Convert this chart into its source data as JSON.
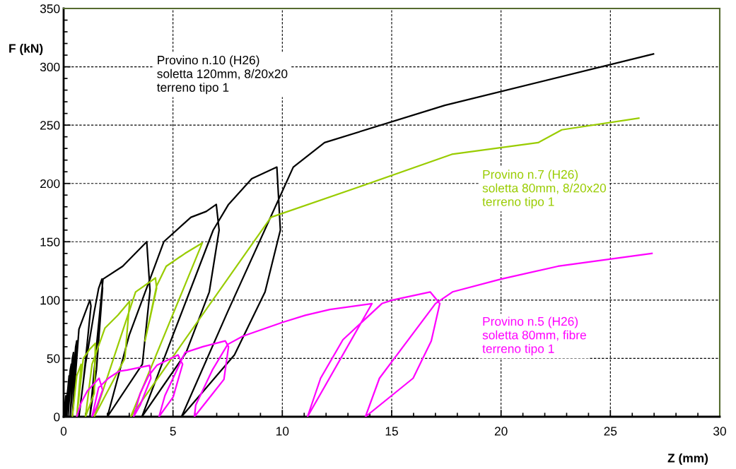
{
  "chart_data": {
    "type": "line",
    "xlabel": "Z (mm)",
    "ylabel": "F (kN)",
    "xlim": [
      0,
      30
    ],
    "ylim": [
      0,
      350
    ],
    "xticks": [
      0,
      {
        "value": 1,
        "label": null
      },
      {
        "value": 2,
        "label": null
      },
      {
        "value": 3,
        "label": null
      },
      {
        "value": 4,
        "label": null
      },
      5,
      {
        "value": 6,
        "label": null
      },
      {
        "value": 7,
        "label": null
      },
      {
        "value": 8,
        "label": null
      },
      {
        "value": 9,
        "label": null
      },
      10,
      {
        "value": 11,
        "label": null
      },
      {
        "value": 12,
        "label": null
      },
      {
        "value": 13,
        "label": null
      },
      {
        "value": 14,
        "label": null
      },
      15,
      {
        "value": 16,
        "label": null
      },
      {
        "value": 17,
        "label": null
      },
      {
        "value": 18,
        "label": null
      },
      {
        "value": 19,
        "label": null
      },
      20,
      {
        "value": 21,
        "label": null
      },
      {
        "value": 22,
        "label": null
      },
      {
        "value": 23,
        "label": null
      },
      {
        "value": 24,
        "label": null
      },
      25,
      {
        "value": 26,
        "label": null
      },
      {
        "value": 27,
        "label": null
      },
      {
        "value": 28,
        "label": null
      },
      {
        "value": 29,
        "label": null
      },
      30
    ],
    "yticks": [
      0,
      {
        "value": 10,
        "label": null
      },
      {
        "value": 20,
        "label": null
      },
      {
        "value": 30,
        "label": null
      },
      {
        "value": 40,
        "label": null
      },
      50,
      {
        "value": 60,
        "label": null
      },
      {
        "value": 70,
        "label": null
      },
      {
        "value": 80,
        "label": null
      },
      {
        "value": 90,
        "label": null
      },
      100,
      {
        "value": 110,
        "label": null
      },
      {
        "value": 120,
        "label": null
      },
      {
        "value": 130,
        "label": null
      },
      {
        "value": 140,
        "label": null
      },
      150,
      {
        "value": 160,
        "label": null
      },
      {
        "value": 170,
        "label": null
      },
      {
        "value": 180,
        "label": null
      },
      {
        "value": 190,
        "label": null
      },
      200,
      {
        "value": 210,
        "label": null
      },
      {
        "value": 220,
        "label": null
      },
      {
        "value": 230,
        "label": null
      },
      {
        "value": 240,
        "label": null
      },
      250,
      {
        "value": 260,
        "label": null
      },
      {
        "value": 270,
        "label": null
      },
      {
        "value": 280,
        "label": null
      },
      {
        "value": 290,
        "label": null
      },
      300,
      {
        "value": 310,
        "label": null
      },
      {
        "value": 320,
        "label": null
      },
      {
        "value": 330,
        "label": null
      },
      {
        "value": 340,
        "label": null
      },
      350
    ],
    "grid": true,
    "line_style": "solid",
    "marker": "none",
    "legend": false,
    "series": [
      {
        "name": "Provino n.10 (H26)\nsoletta 120mm, 8/20x20\nterreno tipo 1",
        "color": "#000000",
        "x": [
          0,
          0.1,
          0.05,
          0.2,
          0.25,
          0.12,
          0.3,
          0.35,
          0.2,
          0.4,
          0.45,
          0.3,
          0.55,
          0.6,
          0.4,
          0.7,
          0.9,
          1.1,
          1.2,
          1.25,
          0.9,
          0.7,
          1.0,
          1.4,
          1.6,
          1.75,
          1.78,
          1.5,
          1.2,
          1.5,
          1.8,
          2.7,
          3.8,
          3.95,
          3.6,
          2.0,
          3.0,
          4.58,
          5.82,
          6.52,
          6.98,
          7.11,
          6.66,
          5.6,
          3.58,
          5.0,
          6.84,
          7.54,
          8.6,
          9.75,
          9.91,
          9.21,
          7.81,
          5.39,
          7.5,
          10.5,
          11.93,
          17.43,
          26.97
        ],
        "values": [
          0,
          18,
          0,
          25,
          35,
          0,
          40,
          45,
          0,
          50,
          55,
          0,
          60,
          65,
          0,
          75,
          85,
          95,
          100,
          95,
          30,
          0,
          45,
          90,
          110,
          118,
          110,
          40,
          0,
          60,
          118,
          129,
          150,
          108,
          45,
          0,
          70,
          150,
          171,
          176,
          182,
          160,
          107,
          55,
          0,
          70,
          160,
          182,
          204,
          214,
          160,
          107,
          53,
          0,
          90,
          214,
          235,
          267,
          311
        ]
      },
      {
        "name": "Provino n.7 (H26)\nsoletta 80mm, 8/20x20\nterreno tipo 1",
        "color": "#99cc00",
        "x": [
          0.4,
          0.6,
          0.8,
          0.6,
          0.9,
          1.2,
          1.45,
          1.4,
          1.0,
          1.3,
          1.89,
          2.48,
          3.02,
          2.8,
          1.4,
          3.29,
          4.2,
          4.25,
          3.72,
          4.25,
          4.69,
          5.55,
          6.34,
          3.07,
          9.48,
          13.96,
          17.75,
          21.7,
          22.78,
          26.3
        ],
        "values": [
          0,
          35,
          45,
          0,
          50,
          58,
          63,
          20,
          0,
          45,
          76,
          87,
          99,
          50,
          0,
          107,
          119,
          110,
          65,
          112,
          129,
          140,
          149,
          0,
          171,
          200,
          225,
          235,
          246,
          256
        ]
      },
      {
        "name": "Provino n.5 (H26)\nsoletta 80mm, fibre\nterreno tipo 1",
        "color": "#ff00ff",
        "x": [
          0.6,
          0.8,
          1.08,
          1.62,
          1.78,
          1.5,
          1.3,
          1.6,
          2.05,
          2.53,
          2.91,
          3.93,
          3.99,
          3.5,
          3.2,
          3.5,
          3.88,
          4.26,
          5.23,
          5.44,
          5.01,
          4.36,
          4.63,
          5.3,
          5.55,
          6.36,
          7.39,
          7.54,
          7.33,
          6.74,
          5.98,
          6.04,
          6.8,
          7.5,
          8.19,
          10.02,
          11.05,
          12.18,
          14.1,
          11.15,
          11.75,
          12.77,
          14.55,
          15.03,
          16.76,
          17.2,
          16.81,
          15.98,
          13.8,
          14.44,
          17.0,
          17.78,
          20,
          22.6,
          26.9
        ],
        "values": [
          0,
          12,
          22,
          33,
          23,
          8,
          0,
          25,
          33,
          39,
          40,
          44,
          33,
          10,
          0,
          20,
          35,
          44,
          53,
          45,
          17,
          0,
          18,
          45,
          55,
          60,
          65,
          60,
          32,
          18,
          0,
          10,
          40,
          62,
          69,
          81,
          87,
          92,
          97,
          0,
          33,
          66,
          97,
          100,
          107,
          97,
          65,
          33,
          0,
          33,
          97,
          107,
          118,
          129,
          140
        ]
      }
    ]
  }
}
